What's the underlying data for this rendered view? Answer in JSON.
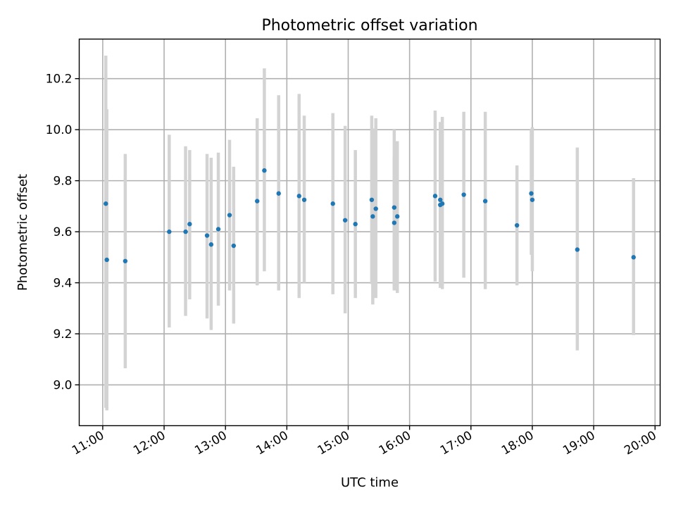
{
  "chart_data": {
    "type": "scatter",
    "title": "Photometric offset variation",
    "xlabel": "UTC time",
    "ylabel": "Photometric offset",
    "xlim": [
      "10:37",
      "20:05"
    ],
    "ylim": [
      8.84,
      10.355
    ],
    "x_ticks": [
      "11:00",
      "12:00",
      "13:00",
      "14:00",
      "15:00",
      "16:00",
      "17:00",
      "18:00",
      "19:00",
      "20:00"
    ],
    "y_ticks": [
      9.0,
      9.2,
      9.4,
      9.6,
      9.8,
      10.0,
      10.2
    ],
    "grid": true,
    "legend": "none",
    "error_bar_color": "#d3d3d3",
    "point_color": "#1f77b4",
    "points": [
      {
        "x": "11:03",
        "y": 9.71,
        "low": 8.91,
        "high": 10.29
      },
      {
        "x": "11:04",
        "y": 9.49,
        "low": 8.9,
        "high": 10.08
      },
      {
        "x": "11:22",
        "y": 9.485,
        "low": 9.065,
        "high": 9.905
      },
      {
        "x": "12:05",
        "y": 9.6,
        "low": 9.225,
        "high": 9.98
      },
      {
        "x": "12:21",
        "y": 9.6,
        "low": 9.27,
        "high": 9.935
      },
      {
        "x": "12:25",
        "y": 9.63,
        "low": 9.335,
        "high": 9.92
      },
      {
        "x": "12:42",
        "y": 9.585,
        "low": 9.26,
        "high": 9.905
      },
      {
        "x": "12:46",
        "y": 9.55,
        "low": 9.215,
        "high": 9.89
      },
      {
        "x": "12:53",
        "y": 9.61,
        "low": 9.31,
        "high": 9.91
      },
      {
        "x": "13:04",
        "y": 9.665,
        "low": 9.37,
        "high": 9.96
      },
      {
        "x": "13:08",
        "y": 9.545,
        "low": 9.24,
        "high": 9.855
      },
      {
        "x": "13:31",
        "y": 9.72,
        "low": 9.39,
        "high": 10.045
      },
      {
        "x": "13:38",
        "y": 9.84,
        "low": 9.445,
        "high": 10.24
      },
      {
        "x": "13:52",
        "y": 9.75,
        "low": 9.37,
        "high": 10.135
      },
      {
        "x": "14:12",
        "y": 9.74,
        "low": 9.34,
        "high": 10.14
      },
      {
        "x": "14:17",
        "y": 9.725,
        "low": 9.4,
        "high": 10.055
      },
      {
        "x": "14:45",
        "y": 9.71,
        "low": 9.355,
        "high": 10.065
      },
      {
        "x": "14:57",
        "y": 9.645,
        "low": 9.28,
        "high": 10.015
      },
      {
        "x": "15:07",
        "y": 9.63,
        "low": 9.34,
        "high": 9.92
      },
      {
        "x": "15:23",
        "y": 9.725,
        "low": 9.395,
        "high": 10.055
      },
      {
        "x": "15:24",
        "y": 9.66,
        "low": 9.315,
        "high": 10.005
      },
      {
        "x": "15:27",
        "y": 9.69,
        "low": 9.34,
        "high": 10.045
      },
      {
        "x": "15:45",
        "y": 9.695,
        "low": 9.37,
        "high": 10.0
      },
      {
        "x": "15:45",
        "y": 9.635,
        "low": 9.375,
        "high": 9.9
      },
      {
        "x": "15:48",
        "y": 9.66,
        "low": 9.36,
        "high": 9.955
      },
      {
        "x": "16:25",
        "y": 9.74,
        "low": 9.405,
        "high": 10.075
      },
      {
        "x": "16:30",
        "y": 9.705,
        "low": 9.39,
        "high": 10.025
      },
      {
        "x": "16:30",
        "y": 9.725,
        "low": 9.38,
        "high": 10.03
      },
      {
        "x": "16:32",
        "y": 9.71,
        "low": 9.375,
        "high": 10.05
      },
      {
        "x": "16:53",
        "y": 9.745,
        "low": 9.42,
        "high": 10.07
      },
      {
        "x": "17:14",
        "y": 9.72,
        "low": 9.375,
        "high": 10.07
      },
      {
        "x": "17:45",
        "y": 9.625,
        "low": 9.39,
        "high": 9.86
      },
      {
        "x": "17:59",
        "y": 9.75,
        "low": 9.51,
        "high": 10.0
      },
      {
        "x": "18:00",
        "y": 9.725,
        "low": 9.445,
        "high": 10.01
      },
      {
        "x": "18:44",
        "y": 9.53,
        "low": 9.135,
        "high": 9.93
      },
      {
        "x": "19:39",
        "y": 9.5,
        "low": 9.195,
        "high": 9.81
      }
    ]
  }
}
